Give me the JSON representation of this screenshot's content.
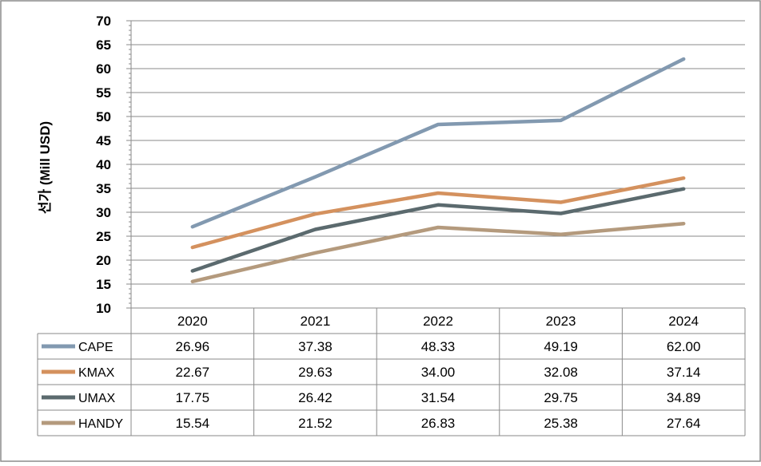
{
  "chart_data": {
    "type": "line",
    "title": "",
    "xlabel": "",
    "ylabel": "선가 (Mill USD)",
    "ylim": [
      10,
      70
    ],
    "ytick_step": 5,
    "yticks": [
      "10",
      "15",
      "20",
      "25",
      "30",
      "35",
      "40",
      "45",
      "50",
      "55",
      "60",
      "65",
      "70"
    ],
    "grid": true,
    "legend": "data-table",
    "categories": [
      "2020",
      "2021",
      "2022",
      "2023",
      "2024"
    ],
    "series": [
      {
        "name": "CAPE",
        "color": "#8299b0",
        "values": [
          26.96,
          37.38,
          48.33,
          49.19,
          62.0
        ],
        "labels": [
          "26.96",
          "37.38",
          "48.33",
          "49.19",
          "62.00"
        ]
      },
      {
        "name": "KMAX",
        "color": "#d4915e",
        "values": [
          22.67,
          29.63,
          34.0,
          32.08,
          37.14
        ],
        "labels": [
          "22.67",
          "29.63",
          "34.00",
          "32.08",
          "37.14"
        ]
      },
      {
        "name": "UMAX",
        "color": "#5b6a6e",
        "values": [
          17.75,
          26.42,
          31.54,
          29.75,
          34.89
        ],
        "labels": [
          "17.75",
          "26.42",
          "31.54",
          "29.75",
          "34.89"
        ]
      },
      {
        "name": "HANDY",
        "color": "#b49a7d",
        "values": [
          15.54,
          21.52,
          26.83,
          25.38,
          27.64
        ],
        "labels": [
          "15.54",
          "21.52",
          "26.83",
          "25.38",
          "27.64"
        ]
      }
    ]
  }
}
